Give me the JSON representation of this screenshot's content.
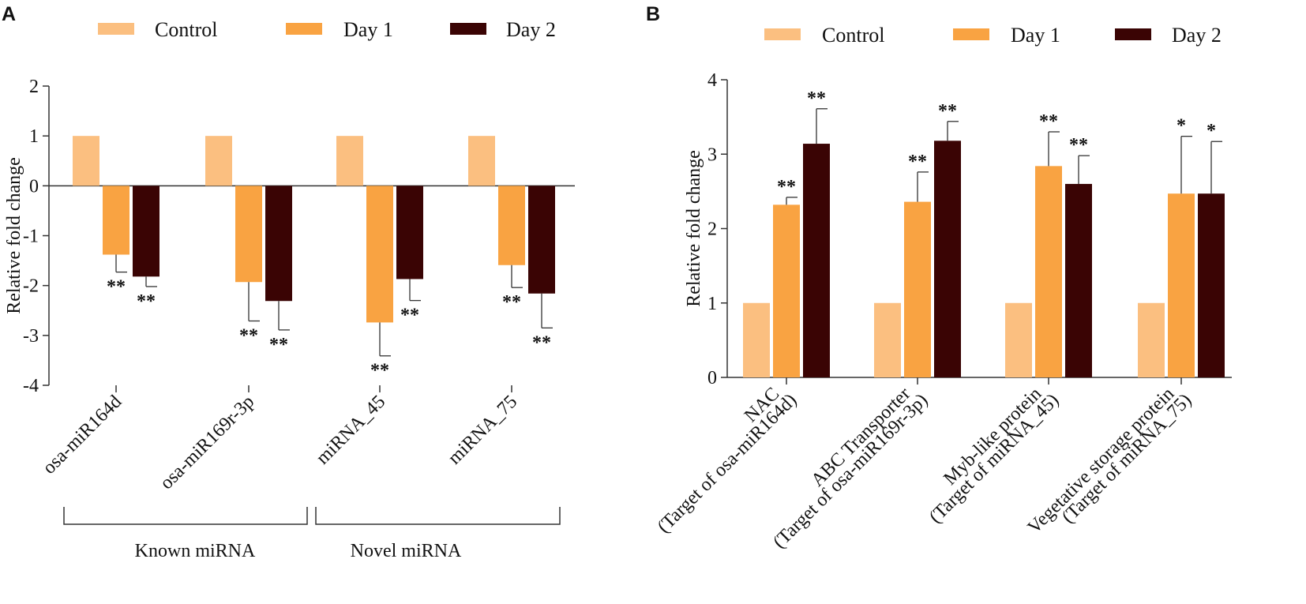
{
  "colors": {
    "Control": "#fbbf80",
    "Day 1": "#f9a342",
    "Day 2": "#3a0404"
  },
  "chart_data": [
    {
      "panel": "A",
      "type": "bar",
      "legend": [
        "Control",
        "Day 1",
        "Day 2"
      ],
      "categories": [
        "osa-miR164d",
        "osa-miR169r-3p",
        "miRNA_45",
        "miRNA_75"
      ],
      "series": [
        {
          "name": "Control",
          "values": [
            1,
            1,
            1,
            1
          ],
          "errors": [
            0,
            0,
            0,
            0
          ],
          "sig": [
            "",
            "",
            "",
            ""
          ]
        },
        {
          "name": "Day 1",
          "values": [
            -1.38,
            -1.93,
            -2.74,
            -1.59
          ],
          "errors": [
            0.35,
            0.78,
            0.67,
            0.45
          ],
          "sig": [
            "**",
            "**",
            "**",
            "**"
          ]
        },
        {
          "name": "Day 2",
          "values": [
            -1.82,
            -2.31,
            -1.87,
            -2.16
          ],
          "errors": [
            0.2,
            0.58,
            0.43,
            0.69
          ],
          "sig": [
            "**",
            "**",
            "**",
            "**"
          ]
        }
      ],
      "ylabel": "Relative fold change",
      "ylim": [
        -4,
        2
      ],
      "yticks": [
        2,
        1,
        0,
        -1,
        -2,
        -3,
        -4
      ],
      "groups": [
        {
          "label": "Known miRNA",
          "from": 0,
          "to": 1
        },
        {
          "label": "Novel  miRNA",
          "from": 2,
          "to": 3
        }
      ]
    },
    {
      "panel": "B",
      "type": "bar",
      "legend": [
        "Control",
        "Day 1",
        "Day 2"
      ],
      "categories": [
        {
          "line1": "NAC",
          "line2": "(Target of osa-miR164d)"
        },
        {
          "line1": "ABC Transporter",
          "line2": "(Target of osa-miR169r-3p)"
        },
        {
          "line1": "Myb-like protein",
          "line2": "(Target of miRNA_45)"
        },
        {
          "line1": "Vegetative storage protein",
          "line2": "(Target of miRNA_75)"
        }
      ],
      "series": [
        {
          "name": "Control",
          "values": [
            1,
            1,
            1,
            1
          ],
          "errors": [
            0,
            0,
            0,
            0
          ],
          "sig": [
            "",
            "",
            "",
            ""
          ]
        },
        {
          "name": "Day 1",
          "values": [
            2.32,
            2.36,
            2.84,
            2.47
          ],
          "errors": [
            0.1,
            0.4,
            0.46,
            0.77
          ],
          "sig": [
            "**",
            "**",
            "**",
            "*"
          ]
        },
        {
          "name": "Day 2",
          "values": [
            3.14,
            3.18,
            2.6,
            2.47
          ],
          "errors": [
            0.47,
            0.26,
            0.38,
            0.7
          ],
          "sig": [
            "**",
            "**",
            "**",
            "*"
          ]
        }
      ],
      "ylabel": "Relative fold change",
      "ylim": [
        0,
        4
      ],
      "yticks": [
        4,
        3,
        2,
        1,
        0
      ]
    }
  ]
}
